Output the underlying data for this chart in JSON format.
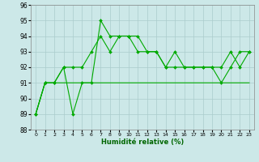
{
  "xlabel": "Humidité relative (%)",
  "background_color": "#cce8e8",
  "grid_color": "#aacccc",
  "line_color": "#00aa00",
  "xlim": [
    -0.5,
    23.5
  ],
  "ylim": [
    88,
    96
  ],
  "yticks": [
    88,
    89,
    90,
    91,
    92,
    93,
    94,
    95,
    96
  ],
  "xticks": [
    0,
    1,
    2,
    3,
    4,
    5,
    6,
    7,
    8,
    9,
    10,
    11,
    12,
    13,
    14,
    15,
    16,
    17,
    18,
    19,
    20,
    21,
    22,
    23
  ],
  "line1": [
    89,
    91,
    91,
    92,
    89,
    91,
    91,
    95,
    94,
    94,
    94,
    94,
    93,
    93,
    92,
    93,
    92,
    92,
    92,
    92,
    91,
    92,
    93,
    93
  ],
  "line2": [
    89,
    91,
    91,
    92,
    92,
    92,
    93,
    94,
    93,
    94,
    94,
    93,
    93,
    93,
    92,
    92,
    92,
    92,
    92,
    92,
    92,
    93,
    92,
    93
  ],
  "line3": [
    89,
    91,
    91,
    91,
    91,
    91,
    91,
    91,
    91,
    91,
    91,
    91,
    91,
    91,
    91,
    91,
    91,
    91,
    91,
    91,
    91,
    91,
    91,
    91
  ]
}
